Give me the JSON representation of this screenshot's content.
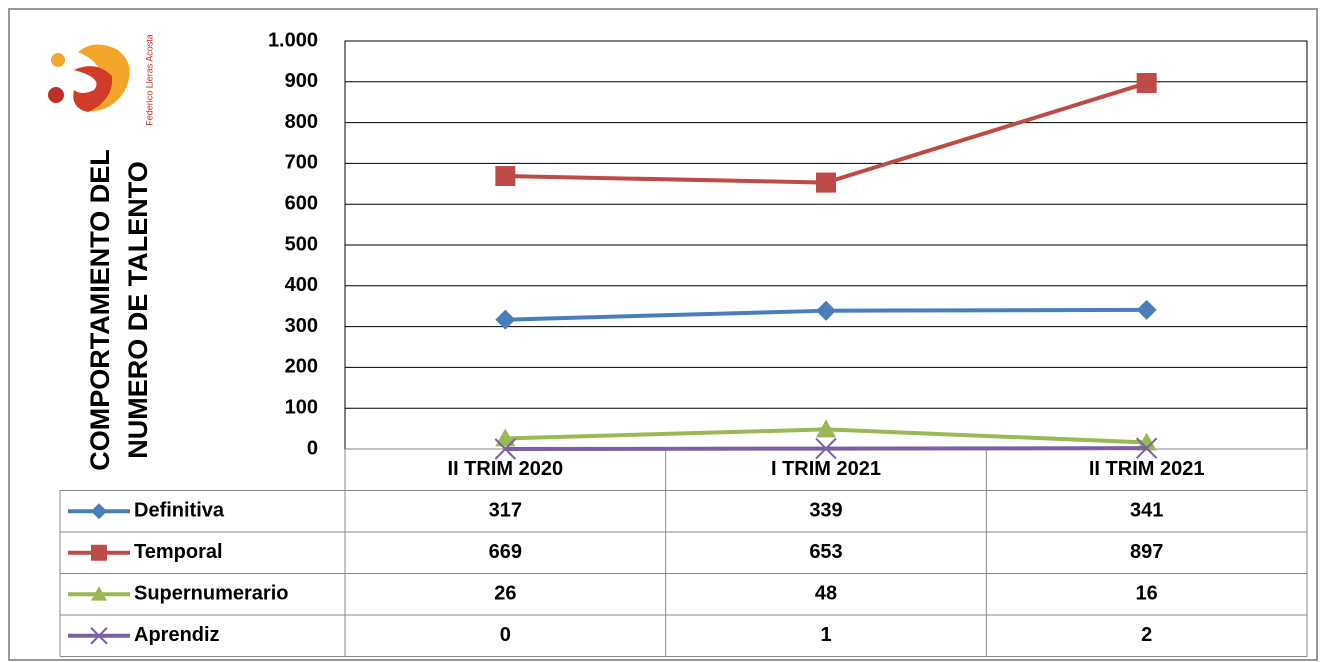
{
  "logo": {
    "text": "Federico Lleras Acosta"
  },
  "chart_data": {
    "type": "line",
    "ylabel": [
      "COMPORTAMIENTO DEL",
      "NUMERO DE TALENTO"
    ],
    "categories": [
      "II TRIM 2020",
      "I TRIM 2021",
      "II TRIM 2021"
    ],
    "series": [
      {
        "name": "Definitiva",
        "color": "#4a7ebb",
        "marker": "diamond",
        "values": [
          317,
          339,
          341
        ]
      },
      {
        "name": "Temporal",
        "color": "#be4b48",
        "marker": "square",
        "values": [
          669,
          653,
          897
        ]
      },
      {
        "name": "Supernumerario",
        "color": "#98b954",
        "marker": "triangle",
        "values": [
          26,
          48,
          16
        ]
      },
      {
        "name": "Aprendiz",
        "color": "#7d60a0",
        "marker": "x",
        "values": [
          0,
          1,
          2
        ]
      }
    ],
    "ylim": [
      0,
      1000
    ],
    "yticks": [
      0,
      100,
      200,
      300,
      400,
      500,
      600,
      700,
      800,
      900,
      {
        "value": 1000,
        "label": "1.000"
      }
    ],
    "grid": true,
    "legend": "table"
  }
}
